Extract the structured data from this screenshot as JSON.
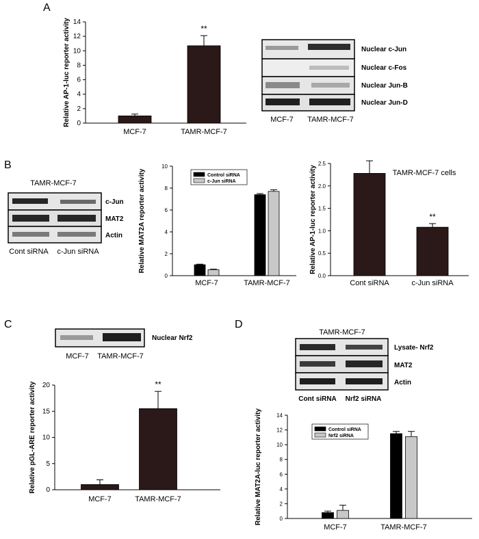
{
  "panels": {
    "A": {
      "letter": "A",
      "blot": {
        "labels": [
          "Nuclear c-Jun",
          "Nuclear c-Fos",
          "Nuclear Jun-B",
          "Nuclear Jun-D"
        ],
        "lanes": [
          "MCF-7",
          "TAMR-MCF-7"
        ]
      }
    },
    "B": {
      "letter": "B",
      "blot": {
        "title": "TAMR-MCF-7",
        "labels": [
          "c-Jun",
          "MAT2",
          "Actin"
        ],
        "lanes": [
          "Cont siRNA",
          "c-Jun siRNA"
        ]
      }
    },
    "C": {
      "letter": "C",
      "blot": {
        "labels": [
          "Nuclear Nrf2"
        ],
        "lanes": [
          "MCF-7",
          "TAMR-MCF-7"
        ]
      }
    },
    "D": {
      "letter": "D",
      "blot": {
        "title": "TAMR-MCF-7",
        "labels": [
          "Lysate- Nrf2",
          "MAT2",
          "Actin"
        ],
        "lanes": [
          "Cont siRNA",
          "Nrf2 siRNA"
        ]
      }
    }
  },
  "colors": {
    "dark_bar": "#2b1818",
    "black_bar": "#000000",
    "gray_bar": "#c8c8c8",
    "band": "#2a2a2a",
    "blot_bg": "#e6e6e6"
  },
  "chart_data": [
    {
      "id": "A",
      "type": "bar",
      "categories": [
        "MCF-7",
        "TAMR-MCF-7"
      ],
      "values": [
        1.0,
        10.7
      ],
      "errors": [
        0.25,
        1.4
      ],
      "ylabel": "Relative AP-1-luc reporter activity",
      "ylim": [
        0,
        14
      ],
      "yticks": [
        0,
        2,
        4,
        6,
        8,
        10,
        12,
        14
      ],
      "significance": [
        "",
        "**"
      ]
    },
    {
      "id": "B1",
      "type": "bar",
      "categories": [
        "MCF-7",
        "TAMR-MCF-7"
      ],
      "series": [
        {
          "name": "Control siRNA",
          "values": [
            1.0,
            7.4
          ],
          "errors": [
            0.05,
            0.1
          ]
        },
        {
          "name": "c-Jun siRNA",
          "values": [
            0.55,
            7.7
          ],
          "errors": [
            0.05,
            0.15
          ]
        }
      ],
      "ylabel": "Relative MAT2A reporter activity",
      "ylim": [
        0,
        10
      ],
      "yticks": [
        0,
        2,
        4,
        6,
        8,
        10
      ],
      "legend": "top-center"
    },
    {
      "id": "B2",
      "type": "bar",
      "categories": [
        "Cont siRNA",
        "c-Jun siRNA"
      ],
      "values": [
        2.28,
        1.08
      ],
      "errors": [
        0.28,
        0.08
      ],
      "ylabel": "Relative AP-1-luc reporter activity",
      "ylim": [
        0,
        2.5
      ],
      "yticks": [
        "0.0",
        "0.5",
        "1.0",
        "1.5",
        "2.0",
        "2.5"
      ],
      "title": "TAMR-MCF-7 cells",
      "significance": [
        "",
        "**"
      ]
    },
    {
      "id": "C",
      "type": "bar",
      "categories": [
        "MCF-7",
        "TAMR-MCF-7"
      ],
      "values": [
        1.0,
        15.5
      ],
      "errors": [
        0.9,
        3.3
      ],
      "ylabel": "Relative pGL-ARE reporter activity",
      "ylim": [
        0,
        20
      ],
      "yticks": [
        0,
        5,
        10,
        15,
        20
      ],
      "significance": [
        "",
        "**"
      ]
    },
    {
      "id": "D",
      "type": "bar",
      "categories": [
        "MCF-7",
        "TAMR-MCF-7"
      ],
      "series": [
        {
          "name": "Control siRNA",
          "values": [
            0.8,
            11.5
          ],
          "errors": [
            0.2,
            0.3
          ]
        },
        {
          "name": "Nrf2 siRNA",
          "values": [
            1.1,
            11.1
          ],
          "errors": [
            0.7,
            0.7
          ]
        }
      ],
      "ylabel": "Relative MAT2A-luc reporter activity",
      "ylim": [
        0,
        14
      ],
      "yticks": [
        0,
        2,
        4,
        6,
        8,
        10,
        12,
        14
      ],
      "legend": "top-left"
    }
  ]
}
